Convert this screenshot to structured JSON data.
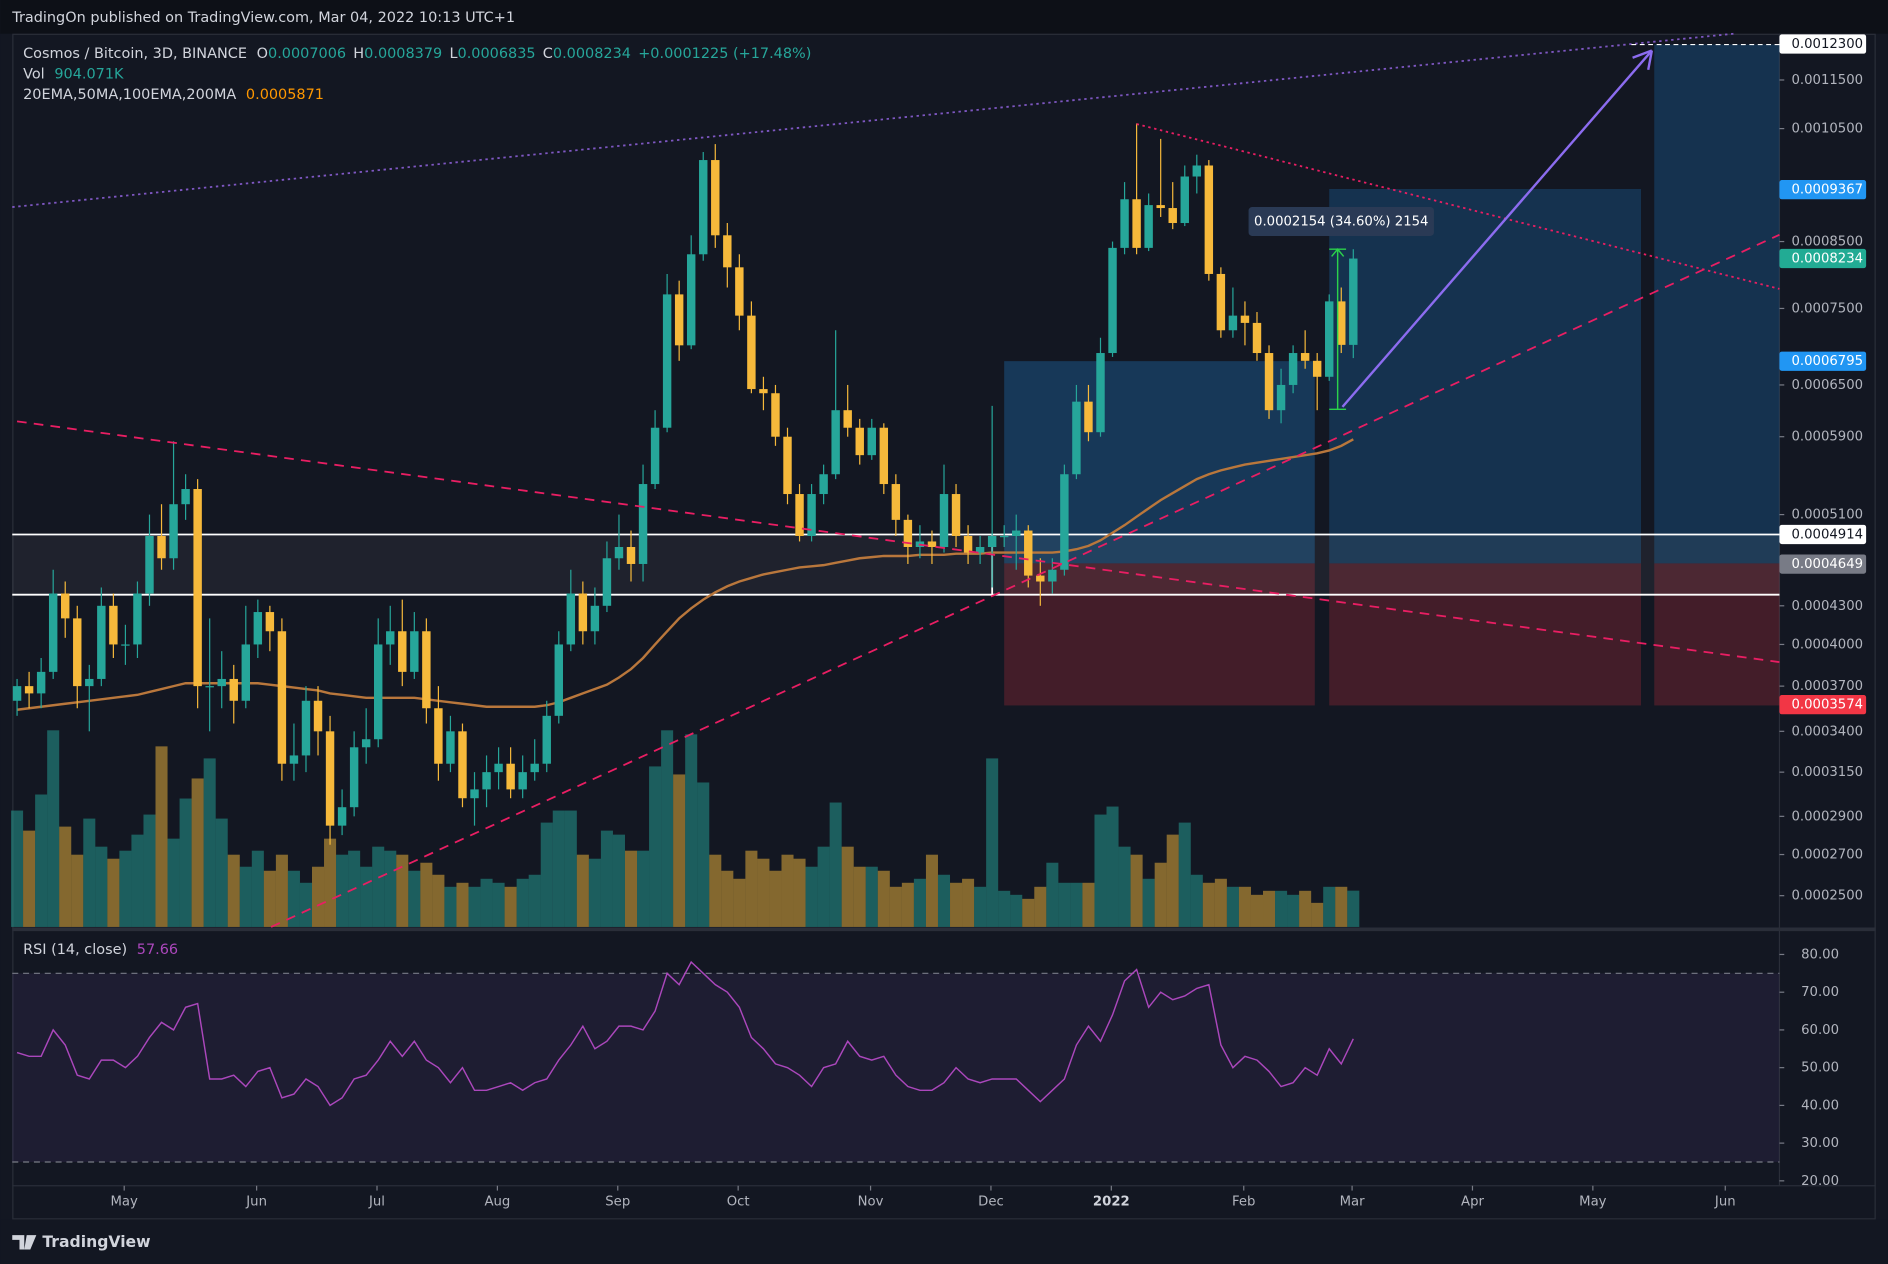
{
  "header": {
    "publisher": "TradingOn published on TradingView.com, Mar 04, 2022 10:13 UTC+1",
    "brand": "TradingView"
  },
  "chart_data": {
    "type": "candlestick",
    "title": "Cosmos / Bitcoin, 3D, BINANCE",
    "ohlc_labels": [
      "O",
      "H",
      "L",
      "C"
    ],
    "change": "+0.0001225 (+17.48%)",
    "log_scale": true,
    "ylim": [
      0.0002358,
      0.001254
    ],
    "xlim": [
      -0.4,
      146.4
    ],
    "yticks": [
      {
        "value": 0.00025,
        "label": "0.0002500"
      },
      {
        "value": 0.00027,
        "label": "0.0002700"
      },
      {
        "value": 0.00029,
        "label": "0.0002900"
      },
      {
        "value": 0.000315,
        "label": "0.0003150"
      },
      {
        "value": 0.00034,
        "label": "0.0003400"
      },
      {
        "value": 0.00037,
        "label": "0.0003700"
      },
      {
        "value": 0.0004,
        "label": "0.0004000"
      },
      {
        "value": 0.00043,
        "label": "0.0004300"
      },
      {
        "value": 0.00051,
        "label": "0.0005100"
      },
      {
        "value": 0.00059,
        "label": "0.0005900"
      },
      {
        "value": 0.00065,
        "label": "0.0006500"
      },
      {
        "value": 0.00075,
        "label": "0.0007500"
      },
      {
        "value": 0.00085,
        "label": "0.0008500"
      },
      {
        "value": 0.00105,
        "label": "0.0010500"
      },
      {
        "value": 0.00115,
        "label": "0.0011500"
      }
    ],
    "xticks": [
      {
        "value": 8.9,
        "label": "May"
      },
      {
        "value": 19.9,
        "label": "Jun"
      },
      {
        "value": 29.9,
        "label": "Jul"
      },
      {
        "value": 39.9,
        "label": "Aug"
      },
      {
        "value": 49.9,
        "label": "Sep"
      },
      {
        "value": 59.9,
        "label": "Oct"
      },
      {
        "value": 70.9,
        "label": "Nov"
      },
      {
        "value": 80.9,
        "label": "Dec"
      },
      {
        "value": 90.9,
        "label": "2022"
      },
      {
        "value": 101.9,
        "label": "Feb"
      },
      {
        "value": 110.9,
        "label": "Mar"
      },
      {
        "value": 120.9,
        "label": "Apr"
      },
      {
        "value": 130.9,
        "label": "May"
      },
      {
        "value": 141.9,
        "label": "Jun"
      }
    ],
    "up_color": "#26a69a",
    "down_color": "#f6b93b",
    "candles": [
      [
        0.00036,
        0.000375,
        0.00035,
        0.00037
      ],
      [
        0.00037,
        0.00038,
        0.000355,
        0.000365
      ],
      [
        0.000365,
        0.00039,
        0.000355,
        0.00038
      ],
      [
        0.00038,
        0.00046,
        0.000375,
        0.00044
      ],
      [
        0.00044,
        0.00045,
        0.000405,
        0.00042
      ],
      [
        0.00042,
        0.00043,
        0.000355,
        0.00037
      ],
      [
        0.00037,
        0.000385,
        0.00034,
        0.000375
      ],
      [
        0.000375,
        0.000445,
        0.00037,
        0.00043
      ],
      [
        0.00043,
        0.00044,
        0.00039,
        0.0004
      ],
      [
        0.0004,
        0.000415,
        0.000385,
        0.0004
      ],
      [
        0.0004,
        0.00045,
        0.00039,
        0.00044
      ],
      [
        0.00044,
        0.00051,
        0.00043,
        0.00049
      ],
      [
        0.00049,
        0.00052,
        0.00046,
        0.00047
      ],
      [
        0.00047,
        0.000585,
        0.00046,
        0.00052
      ],
      [
        0.00052,
        0.00055,
        0.000505,
        0.000535
      ],
      [
        0.000535,
        0.000545,
        0.000355,
        0.00037
      ],
      [
        0.00037,
        0.00042,
        0.00034,
        0.00037
      ],
      [
        0.00037,
        0.000395,
        0.000355,
        0.000375
      ],
      [
        0.000375,
        0.000385,
        0.000345,
        0.00036
      ],
      [
        0.00036,
        0.00043,
        0.000355,
        0.0004
      ],
      [
        0.0004,
        0.000435,
        0.00039,
        0.000425
      ],
      [
        0.000425,
        0.00043,
        0.000395,
        0.00041
      ],
      [
        0.00041,
        0.00042,
        0.00031,
        0.00032
      ],
      [
        0.00032,
        0.000345,
        0.00031,
        0.000325
      ],
      [
        0.000325,
        0.00037,
        0.000315,
        0.00036
      ],
      [
        0.00036,
        0.00037,
        0.000325,
        0.00034
      ],
      [
        0.00034,
        0.00035,
        0.000275,
        0.000285
      ],
      [
        0.000285,
        0.000305,
        0.00028,
        0.000295
      ],
      [
        0.000295,
        0.00034,
        0.00029,
        0.00033
      ],
      [
        0.00033,
        0.000355,
        0.00032,
        0.000335
      ],
      [
        0.000335,
        0.00042,
        0.00033,
        0.0004
      ],
      [
        0.0004,
        0.00043,
        0.000385,
        0.00041
      ],
      [
        0.00041,
        0.000435,
        0.00037,
        0.00038
      ],
      [
        0.00038,
        0.000425,
        0.000375,
        0.00041
      ],
      [
        0.00041,
        0.00042,
        0.000345,
        0.000355
      ],
      [
        0.000355,
        0.00037,
        0.00031,
        0.00032
      ],
      [
        0.00032,
        0.00035,
        0.000315,
        0.00034
      ],
      [
        0.00034,
        0.000345,
        0.000295,
        0.0003
      ],
      [
        0.0003,
        0.000315,
        0.000285,
        0.000305
      ],
      [
        0.000305,
        0.000325,
        0.000295,
        0.000315
      ],
      [
        0.000315,
        0.00033,
        0.000305,
        0.00032
      ],
      [
        0.00032,
        0.00033,
        0.0003,
        0.000305
      ],
      [
        0.000305,
        0.000325,
        0.0003,
        0.000315
      ],
      [
        0.000315,
        0.000335,
        0.00031,
        0.00032
      ],
      [
        0.00032,
        0.00036,
        0.000315,
        0.00035
      ],
      [
        0.00035,
        0.00041,
        0.000345,
        0.0004
      ],
      [
        0.0004,
        0.00046,
        0.000395,
        0.00044
      ],
      [
        0.00044,
        0.00045,
        0.0004,
        0.00041
      ],
      [
        0.00041,
        0.000445,
        0.0004,
        0.00043
      ],
      [
        0.00043,
        0.000485,
        0.000425,
        0.00047
      ],
      [
        0.00047,
        0.00051,
        0.00046,
        0.00048
      ],
      [
        0.00048,
        0.000495,
        0.00045,
        0.000465
      ],
      [
        0.000465,
        0.00056,
        0.00045,
        0.00054
      ],
      [
        0.00054,
        0.00062,
        0.000535,
        0.0006
      ],
      [
        0.0006,
        0.0008,
        0.000595,
        0.00077
      ],
      [
        0.00077,
        0.00079,
        0.00068,
        0.0007
      ],
      [
        0.0007,
        0.00086,
        0.000695,
        0.00083
      ],
      [
        0.00083,
        0.001005,
        0.00082,
        0.00099
      ],
      [
        0.00099,
        0.00102,
        0.00084,
        0.00086
      ],
      [
        0.00086,
        0.00088,
        0.00078,
        0.00081
      ],
      [
        0.00081,
        0.00083,
        0.00072,
        0.00074
      ],
      [
        0.00074,
        0.00076,
        0.00064,
        0.000645
      ],
      [
        0.000645,
        0.00066,
        0.00062,
        0.00064
      ],
      [
        0.00064,
        0.00065,
        0.00058,
        0.00059
      ],
      [
        0.00059,
        0.0006,
        0.00052,
        0.00053
      ],
      [
        0.00053,
        0.00054,
        0.000485,
        0.00049
      ],
      [
        0.00049,
        0.00054,
        0.000485,
        0.00053
      ],
      [
        0.00053,
        0.00056,
        0.00052,
        0.00055
      ],
      [
        0.00055,
        0.00072,
        0.000545,
        0.00062
      ],
      [
        0.00062,
        0.00065,
        0.00059,
        0.0006
      ],
      [
        0.0006,
        0.00061,
        0.00056,
        0.00057
      ],
      [
        0.00057,
        0.00061,
        0.000565,
        0.0006
      ],
      [
        0.0006,
        0.000605,
        0.00053,
        0.00054
      ],
      [
        0.00054,
        0.00055,
        0.00049,
        0.000505
      ],
      [
        0.000505,
        0.00051,
        0.000465,
        0.00048
      ],
      [
        0.00048,
        0.0005,
        0.00047,
        0.000485
      ],
      [
        0.000485,
        0.000495,
        0.000465,
        0.00048
      ],
      [
        0.00048,
        0.00056,
        0.000475,
        0.00053
      ],
      [
        0.00053,
        0.00054,
        0.00048,
        0.00049
      ],
      [
        0.00049,
        0.0005,
        0.000465,
        0.000475
      ],
      [
        0.000475,
        0.00049,
        0.000465,
        0.00048
      ],
      [
        0.00048,
        0.000625,
        0.000445,
        0.00049
      ],
      [
        0.00049,
        0.0005,
        0.00048,
        0.00049
      ],
      [
        0.00049,
        0.00051,
        0.00046,
        0.000495
      ],
      [
        0.000495,
        0.0005,
        0.000445,
        0.000455
      ],
      [
        0.000455,
        0.00047,
        0.00043,
        0.00045
      ],
      [
        0.00045,
        0.00047,
        0.00044,
        0.00046
      ],
      [
        0.00046,
        0.00056,
        0.000455,
        0.00055
      ],
      [
        0.00055,
        0.00065,
        0.000545,
        0.00063
      ],
      [
        0.00063,
        0.00065,
        0.000585,
        0.000595
      ],
      [
        0.000595,
        0.00071,
        0.00059,
        0.00069
      ],
      [
        0.00069,
        0.00085,
        0.000685,
        0.00084
      ],
      [
        0.00084,
        0.00095,
        0.00083,
        0.00092
      ],
      [
        0.00092,
        0.00106,
        0.00083,
        0.00084
      ],
      [
        0.00084,
        0.00093,
        0.000835,
        0.00091
      ],
      [
        0.00091,
        0.00103,
        0.00089,
        0.000905
      ],
      [
        0.000905,
        0.00095,
        0.00087,
        0.00088
      ],
      [
        0.00088,
        0.00098,
        0.000875,
        0.00096
      ],
      [
        0.00096,
        0.001,
        0.00093,
        0.00098
      ],
      [
        0.00098,
        0.00099,
        0.00079,
        0.0008
      ],
      [
        0.0008,
        0.00081,
        0.00071,
        0.00072
      ],
      [
        0.00072,
        0.00078,
        0.00071,
        0.00074
      ],
      [
        0.00074,
        0.00076,
        0.0007,
        0.00073
      ],
      [
        0.00073,
        0.000745,
        0.00068,
        0.00069
      ],
      [
        0.00069,
        0.0007,
        0.00061,
        0.00062
      ],
      [
        0.00062,
        0.00067,
        0.000605,
        0.00065
      ],
      [
        0.00065,
        0.0007,
        0.00064,
        0.00069
      ],
      [
        0.00069,
        0.00072,
        0.00067,
        0.00068
      ],
      [
        0.00068,
        0.00069,
        0.00062,
        0.00066
      ],
      [
        0.00066,
        0.00077,
        0.000655,
        0.00076
      ],
      [
        0.00076,
        0.00078,
        0.00069,
        0.0007006
      ],
      [
        0.0007006,
        0.0008379,
        0.0006835,
        0.0008234
      ]
    ],
    "ma": {
      "name": "20EMA,50MA,100EMA,200MA",
      "color": "#b9773c",
      "label_color": "#ff9800",
      "values": [
        0.000354,
        0.000355,
        0.000356,
        0.000357,
        0.000358,
        0.000359,
        0.00036,
        0.000361,
        0.000362,
        0.000363,
        0.000364,
        0.000366,
        0.000368,
        0.00037,
        0.000372,
        0.000372,
        0.000372,
        0.000372,
        0.000372,
        0.000372,
        0.000372,
        0.000371,
        0.00037,
        0.000369,
        0.000368,
        0.000367,
        0.000365,
        0.000364,
        0.000363,
        0.000362,
        0.000362,
        0.000362,
        0.000362,
        0.000362,
        0.000361,
        0.00036,
        0.000359,
        0.000358,
        0.000357,
        0.000356,
        0.000356,
        0.000356,
        0.000356,
        0.000356,
        0.000357,
        0.000359,
        0.000362,
        0.000365,
        0.000368,
        0.000371,
        0.000376,
        0.000382,
        0.00039,
        0.0004,
        0.00041,
        0.00042,
        0.000428,
        0.000435,
        0.000441,
        0.000446,
        0.00045,
        0.000453,
        0.000456,
        0.000458,
        0.00046,
        0.000462,
        0.000463,
        0.000464,
        0.000466,
        0.000468,
        0.00047,
        0.000471,
        0.000472,
        0.000472,
        0.000472,
        0.000473,
        0.000473,
        0.000473,
        0.000474,
        0.000474,
        0.000474,
        0.000475,
        0.000475,
        0.000475,
        0.000475,
        0.000475,
        0.000475,
        0.000476,
        0.000478,
        0.000481,
        0.000486,
        0.000493,
        0.0005,
        0.000508,
        0.000516,
        0.000524,
        0.000531,
        0.000538,
        0.000545,
        0.00055,
        0.000554,
        0.000557,
        0.00056,
        0.000562,
        0.000564,
        0.000566,
        0.000568,
        0.00057,
        0.000572,
        0.000575,
        0.00058,
        0.0005871
      ]
    },
    "volume": {
      "name": "Vol",
      "last_label": "904.071K",
      "ylim": [
        0,
        6000000
      ],
      "values": [
        2900000,
        2400000,
        3300000,
        4900000,
        2500000,
        1800000,
        2700000,
        2000000,
        1700000,
        1900000,
        2300000,
        2800000,
        4500000,
        2200000,
        3200000,
        3700000,
        4200000,
        2700000,
        1800000,
        1500000,
        1900000,
        1400000,
        1800000,
        1400000,
        1100000,
        1500000,
        2200000,
        1800000,
        1900000,
        1500000,
        2000000,
        1900000,
        1800000,
        1400000,
        1600000,
        1300000,
        1000000,
        1100000,
        1000000,
        1200000,
        1100000,
        1000000,
        1200000,
        1300000,
        2600000,
        2900000,
        2900000,
        1800000,
        1700000,
        2400000,
        2300000,
        1900000,
        1900000,
        4000000,
        4900000,
        3800000,
        4800000,
        3600000,
        1800000,
        1400000,
        1200000,
        1900000,
        1700000,
        1400000,
        1800000,
        1700000,
        1500000,
        2000000,
        3100000,
        2000000,
        1500000,
        1500000,
        1400000,
        1000000,
        1100000,
        1200000,
        1800000,
        1300000,
        1100000,
        1200000,
        1000000,
        4200000,
        900000,
        800000,
        700000,
        1000000,
        1600000,
        1100000,
        1100000,
        1100000,
        2800000,
        3000000,
        2000000,
        1800000,
        1200000,
        1600000,
        2300000,
        2600000,
        1300000,
        1100000,
        1200000,
        1000000,
        1000000,
        800000,
        900000,
        900000,
        800000,
        900000,
        600000,
        1000000,
        1000000,
        904071
      ]
    },
    "rsi": {
      "name": "RSI (14, close)",
      "color": "#ab47bc",
      "ylim": [
        18.7,
        85.7
      ],
      "bands": [
        25,
        75
      ],
      "yticks": [
        {
          "value": 20,
          "label": "20.00"
        },
        {
          "value": 30,
          "label": "30.00"
        },
        {
          "value": 40,
          "label": "40.00"
        },
        {
          "value": 50,
          "label": "50.00"
        },
        {
          "value": 60,
          "label": "60.00"
        },
        {
          "value": 70,
          "label": "70.00"
        },
        {
          "value": 80,
          "label": "80.00"
        }
      ],
      "values": [
        54,
        53,
        53,
        60,
        56,
        48,
        47,
        52,
        52,
        50,
        53,
        58,
        62,
        60,
        66,
        67,
        47,
        47,
        48,
        45,
        49,
        50,
        42,
        43,
        47,
        45,
        40,
        42,
        47,
        48,
        52,
        57,
        53,
        57,
        52,
        50,
        46,
        50,
        44,
        44,
        45,
        46,
        44,
        46,
        47,
        52,
        56,
        61,
        55,
        57,
        61,
        61,
        60,
        65,
        75,
        72,
        78,
        75,
        72,
        70,
        66,
        58,
        55,
        51,
        50,
        48,
        45,
        50,
        51,
        57,
        53,
        52,
        53,
        48,
        45,
        44,
        44,
        46,
        50,
        47,
        46,
        47,
        47,
        47,
        44,
        41,
        44,
        47,
        56,
        61,
        57,
        64,
        73,
        76,
        66,
        70,
        68,
        69,
        71,
        72,
        56,
        50,
        53,
        52,
        49,
        45,
        46,
        50,
        48,
        55,
        51,
        57.66
      ]
    },
    "price_labels": [
      {
        "value": 0.00123,
        "label": "0.0012300",
        "color": "#ffffff",
        "text_color": "#131722"
      },
      {
        "value": 0.0009367,
        "label": "0.0009367",
        "color": "#2196f3",
        "text_color": "#ffffff"
      },
      {
        "value": 0.0008234,
        "label": "0.0008234",
        "color": "#22ab94",
        "text_color": "#ffffff"
      },
      {
        "value": 0.0006795,
        "label": "0.0006795",
        "color": "#2196f3",
        "text_color": "#ffffff"
      },
      {
        "value": 0.0004914,
        "label": "0.0004914",
        "color": "#ffffff",
        "text_color": "#131722"
      },
      {
        "value": 0.0004649,
        "label": "0.0004649",
        "color": "#787b86",
        "text_color": "#ffffff"
      },
      {
        "value": 0.0003574,
        "label": "0.0003574",
        "color": "#f23645",
        "text_color": "#ffffff"
      }
    ],
    "measure": "0.0002154 (34.60%) 2154"
  }
}
